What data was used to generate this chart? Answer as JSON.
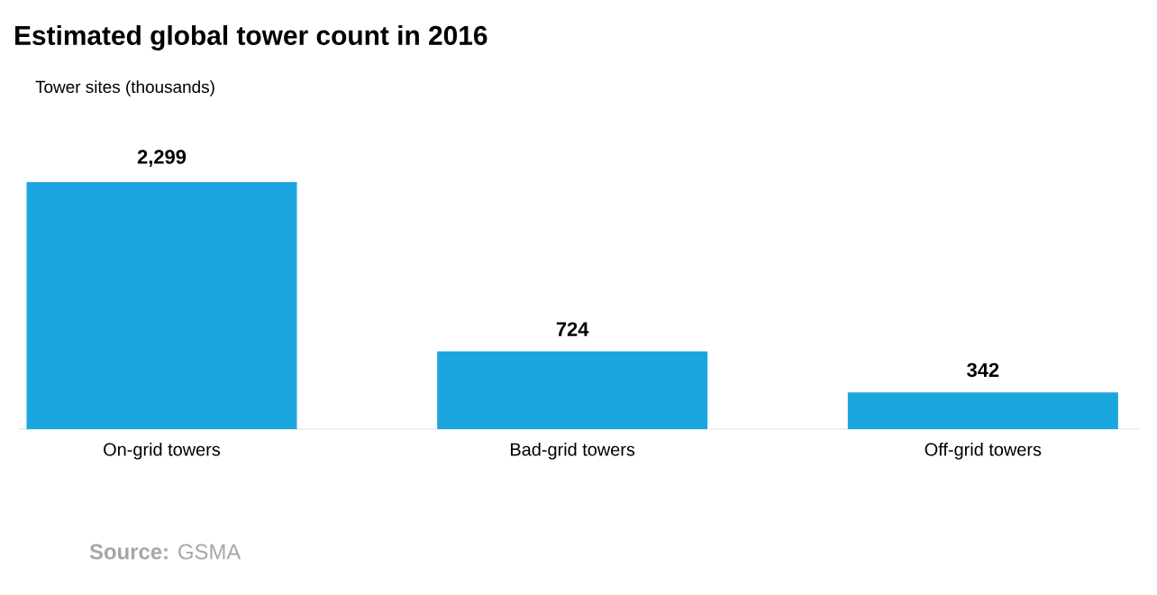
{
  "chart_data": {
    "type": "bar",
    "title": "Estimated global tower count in 2016",
    "categories": [
      "On-grid towers",
      "Bad-grid towers",
      "Off-grid towers"
    ],
    "values": [
      2299,
      724,
      342
    ],
    "value_labels": [
      "2,299",
      "724",
      "342"
    ],
    "color": "#1ba6df",
    "annotations": [
      "Tower sites (thousands)",
      "**Source:** GSMA"
    ]
  }
}
